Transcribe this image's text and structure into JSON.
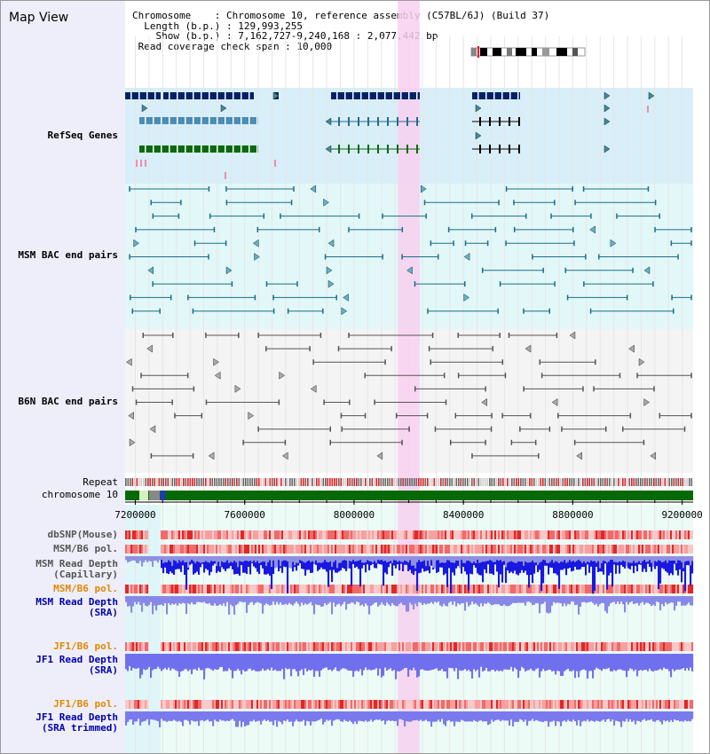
{
  "app": {
    "title": "Map View"
  },
  "info": {
    "chromosome": "Chromosome    : Chromosome 10, reference assembly (C57BL/6J) (Build 37)",
    "length": "  Length (b.p.) : 129,993,255",
    "show": "    Show (b.p.) : 7,162,727-9,240,168 : 2,077,442 bp",
    "coverage": " Read coverage check span : 10,000"
  },
  "tracks": {
    "refseq": {
      "label": "RefSeq Genes",
      "color": "#0000aa"
    },
    "msm_bac": {
      "label": "MSM BAC end pairs",
      "color": "#006699"
    },
    "b6n_bac": {
      "label": "B6N BAC end pairs",
      "color": "#666666"
    },
    "repeat": {
      "label": "Repeat"
    },
    "chrom": {
      "label": "chromosome 10"
    },
    "dbsnp": {
      "label": "dbSNP(Mouse)"
    },
    "msm_pol_cap": {
      "label": "MSM/B6 pol."
    },
    "msm_depth_cap": {
      "line1": "MSM Read Depth",
      "line2": "(Capillary)"
    },
    "msm_pol_sra": {
      "label": "MSM/B6 pol.",
      "color": "#e08800"
    },
    "msm_depth_sra": {
      "line1": "MSM Read Depth",
      "line2": "(SRA)",
      "color": "#0000aa"
    },
    "jf1_pol": {
      "label": "JF1/B6 pol.",
      "color": "#e08800"
    },
    "jf1_depth": {
      "line1": "JF1 Read Depth",
      "line2": "(SRA)",
      "color": "#0000aa"
    },
    "jf1_pol_trim": {
      "label": "JF1/B6 pol.",
      "color": "#e08800"
    },
    "jf1_depth_trim": {
      "line1": "JF1 Read Depth",
      "line2": "(SRA trimmed)",
      "color": "#0000aa"
    }
  },
  "axis": {
    "range": [
      7162727,
      9240168
    ],
    "ticks": [
      "7200000",
      "7600000",
      "8000000",
      "8400000",
      "8800000",
      "9200000"
    ]
  },
  "highlight": {
    "start": 8160000,
    "end": 8240000,
    "color": "#f8d0f0"
  }
}
